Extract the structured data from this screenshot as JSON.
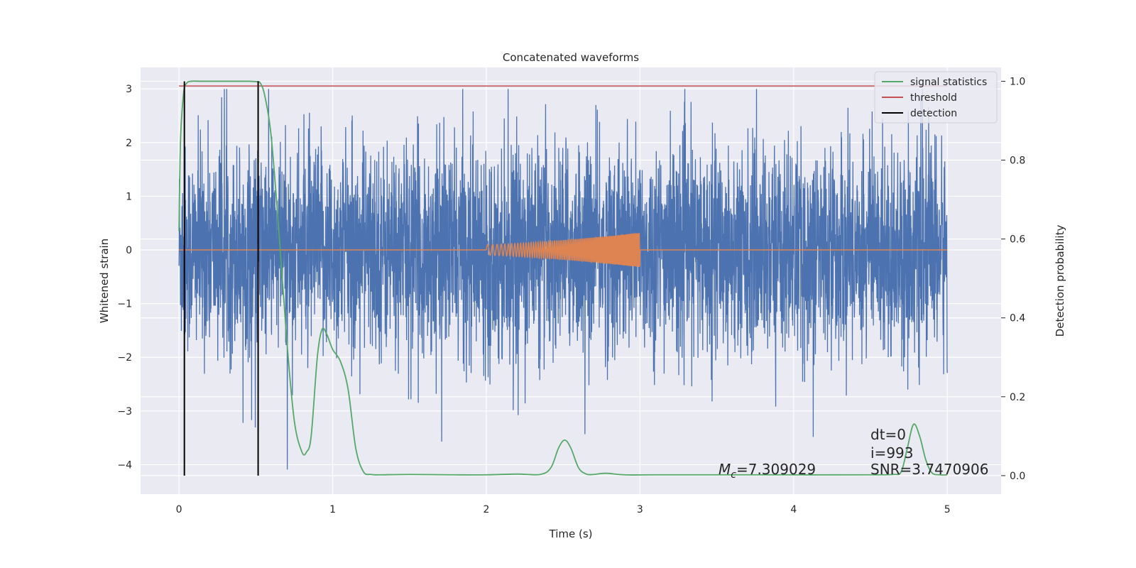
{
  "chart_data": {
    "type": "line",
    "title": "Concatenated waveforms",
    "xlabel": "Time (s)",
    "ylabel": "Whitened strain",
    "y2label": "Detection probability",
    "xlim": [
      -0.25,
      5.35
    ],
    "ylim": [
      -4.55,
      3.4
    ],
    "y2lim": [
      -0.047,
      1.035
    ],
    "xticks": [
      0,
      1,
      2,
      3,
      4,
      5
    ],
    "yticks": [
      3,
      2,
      1,
      0,
      -1,
      -2,
      -3,
      -4
    ],
    "y2ticks": [
      1.0,
      0.8,
      0.6,
      0.4,
      0.2,
      0.0
    ],
    "y2tick_labels": [
      "1.0",
      "0.8",
      "0.6",
      "0.4",
      "0.2",
      "0.0"
    ],
    "grid": true,
    "legend_position": "top-right",
    "colors": {
      "strain": "#4c72b0",
      "template": "#dd8452",
      "signal": "#55a868",
      "threshold": "#c44e52",
      "detection": "#000000",
      "background": "#eaeaf2"
    },
    "series": [
      {
        "name": "",
        "axis": "left",
        "role": "whitened-strain-noise",
        "x_range": [
          0,
          5
        ],
        "envelope_pos_max": 3.0,
        "envelope_neg_min": -4.15
      },
      {
        "name": "",
        "axis": "left",
        "role": "injected-chirp",
        "x_range": [
          2.0,
          3.0
        ],
        "start_amplitude": 0.1,
        "end_amplitude": 0.32
      },
      {
        "name": "signal statistics",
        "axis": "right",
        "x": [
          0,
          0.01,
          0.03,
          0.05,
          0.08,
          0.15,
          0.3,
          0.45,
          0.5,
          0.53,
          0.56,
          0.6,
          0.65,
          0.7,
          0.75,
          0.8,
          0.83,
          0.86,
          0.9,
          0.93,
          0.96,
          1.0,
          1.05,
          1.1,
          1.15,
          1.2,
          1.25,
          1.3,
          1.5,
          1.8,
          2.0,
          2.2,
          2.35,
          2.42,
          2.47,
          2.51,
          2.55,
          2.6,
          2.65,
          2.7,
          2.78,
          2.9,
          3.1,
          3.5,
          4.0,
          4.5,
          4.65,
          4.7,
          4.74,
          4.78,
          4.82,
          4.86,
          4.9,
          4.95,
          5.0
        ],
        "y": [
          0.62,
          0.85,
          0.97,
          0.995,
          1.0,
          1.0,
          1.0,
          1.0,
          0.999,
          0.995,
          0.96,
          0.86,
          0.62,
          0.35,
          0.14,
          0.06,
          0.06,
          0.1,
          0.3,
          0.37,
          0.36,
          0.32,
          0.29,
          0.22,
          0.07,
          0.01,
          0.003,
          0.002,
          0.003,
          0.002,
          0.002,
          0.004,
          0.003,
          0.02,
          0.07,
          0.09,
          0.07,
          0.02,
          0.004,
          0.003,
          0.006,
          0.002,
          0.002,
          0.002,
          0.002,
          0.002,
          0.003,
          0.01,
          0.07,
          0.13,
          0.1,
          0.04,
          0.007,
          0.002,
          0.002
        ]
      },
      {
        "name": "threshold",
        "axis": "right",
        "x": [
          0,
          5
        ],
        "y": [
          0.988,
          0.988
        ]
      },
      {
        "name": "detection",
        "axis": "right",
        "segments": [
          {
            "x": 0.035,
            "y": [
              0.0,
              1.0
            ]
          },
          {
            "x": 0.515,
            "y": [
              0.0,
              1.0
            ]
          }
        ]
      }
    ],
    "annotations": {
      "mc_label": "M",
      "mc_sub": "c",
      "mc_value": "=7.309029",
      "dt": "dt=0",
      "i": "i=993",
      "snr": "SNR=3.7470906"
    }
  }
}
